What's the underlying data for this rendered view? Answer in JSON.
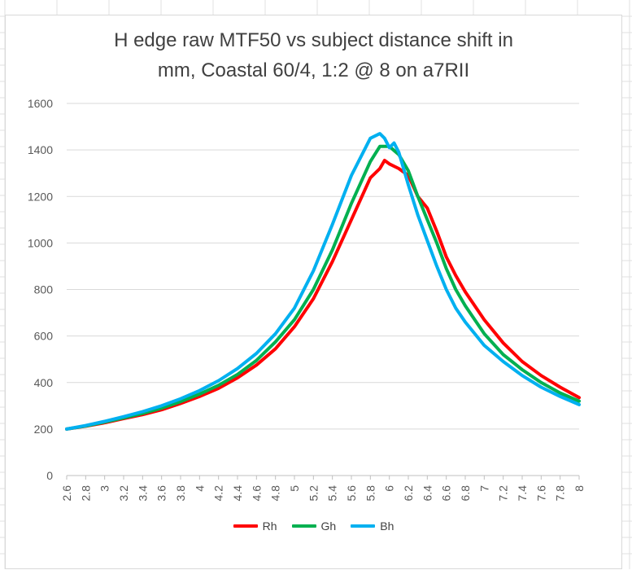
{
  "chart_data": {
    "type": "line",
    "title_line1": "H edge raw MTF50 vs subject distance shift in",
    "title_line2": "mm, Coastal 60/4, 1:2 @ 8 on a7RII",
    "xlim": [
      2.6,
      8
    ],
    "ylim": [
      0,
      1600
    ],
    "yticks": [
      "0",
      "200",
      "400",
      "600",
      "800",
      "1000",
      "1200",
      "1400",
      "1600"
    ],
    "xticks": [
      "2.6",
      "2.8",
      "3",
      "3.2",
      "3.4",
      "3.6",
      "3.8",
      "4",
      "4.2",
      "4.4",
      "4.6",
      "4.8",
      "5",
      "5.2",
      "5.4",
      "5.6",
      "5.8",
      "6",
      "6.2",
      "6.4",
      "6.6",
      "6.8",
      "7",
      "7.2",
      "7.4",
      "7.6",
      "7.8",
      "8"
    ],
    "grid": "horizontal",
    "legend_position": "bottom",
    "series": [
      {
        "name": "Rh",
        "color": "#ff0000",
        "x": [
          2.6,
          2.8,
          3.0,
          3.2,
          3.4,
          3.6,
          3.8,
          4.0,
          4.2,
          4.4,
          4.6,
          4.8,
          5.0,
          5.2,
          5.4,
          5.6,
          5.8,
          5.9,
          5.95,
          6.0,
          6.1,
          6.2,
          6.3,
          6.4,
          6.5,
          6.6,
          6.7,
          6.8,
          7.0,
          7.2,
          7.4,
          7.6,
          7.8,
          8.0
        ],
        "y": [
          200,
          212,
          227,
          245,
          262,
          283,
          310,
          340,
          375,
          420,
          475,
          545,
          640,
          760,
          920,
          1100,
          1280,
          1320,
          1355,
          1340,
          1320,
          1290,
          1200,
          1150,
          1050,
          940,
          860,
          790,
          670,
          570,
          490,
          430,
          380,
          335
        ]
      },
      {
        "name": "Gh",
        "color": "#00b050",
        "x": [
          2.6,
          2.8,
          3.0,
          3.2,
          3.4,
          3.6,
          3.8,
          4.0,
          4.2,
          4.4,
          4.6,
          4.8,
          5.0,
          5.2,
          5.4,
          5.6,
          5.8,
          5.9,
          6.0,
          6.1,
          6.2,
          6.3,
          6.4,
          6.5,
          6.6,
          6.7,
          6.8,
          7.0,
          7.2,
          7.4,
          7.6,
          7.8,
          8.0
        ],
        "y": [
          200,
          213,
          230,
          248,
          267,
          290,
          318,
          350,
          388,
          435,
          495,
          575,
          670,
          800,
          970,
          1170,
          1350,
          1415,
          1415,
          1380,
          1310,
          1200,
          1100,
          1000,
          890,
          800,
          730,
          610,
          520,
          455,
          400,
          355,
          320
        ]
      },
      {
        "name": "Bh",
        "color": "#00b0f0",
        "x": [
          2.6,
          2.8,
          3.0,
          3.2,
          3.4,
          3.6,
          3.8,
          4.0,
          4.2,
          4.4,
          4.6,
          4.8,
          5.0,
          5.2,
          5.4,
          5.6,
          5.8,
          5.9,
          5.95,
          6.0,
          6.05,
          6.1,
          6.2,
          6.3,
          6.4,
          6.5,
          6.6,
          6.7,
          6.8,
          7.0,
          7.2,
          7.4,
          7.6,
          7.8,
          8.0
        ],
        "y": [
          200,
          215,
          233,
          253,
          275,
          300,
          330,
          365,
          408,
          460,
          525,
          610,
          720,
          880,
          1080,
          1290,
          1450,
          1470,
          1450,
          1410,
          1430,
          1390,
          1250,
          1120,
          1010,
          900,
          800,
          720,
          660,
          560,
          490,
          430,
          380,
          340,
          305
        ]
      }
    ]
  }
}
